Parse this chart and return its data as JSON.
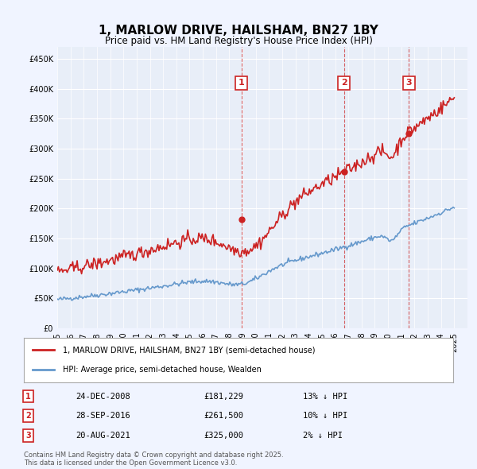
{
  "title": "1, MARLOW DRIVE, HAILSHAM, BN27 1BY",
  "subtitle": "Price paid vs. HM Land Registry's House Price Index (HPI)",
  "ylabel": "",
  "ylim": [
    0,
    470000
  ],
  "yticks": [
    0,
    50000,
    100000,
    150000,
    200000,
    250000,
    300000,
    350000,
    400000,
    450000
  ],
  "ytick_labels": [
    "£0",
    "£50K",
    "£100K",
    "£150K",
    "£200K",
    "£250K",
    "£300K",
    "£350K",
    "£400K",
    "£450K"
  ],
  "background_color": "#f0f4ff",
  "plot_bg_color": "#e8eef8",
  "grid_color": "#ffffff",
  "hpi_color": "#6699cc",
  "price_color": "#cc2222",
  "sale_marker_color": "#cc2222",
  "vline_color": "#cc2222",
  "annotation_box_color": "#cc2222",
  "sales": [
    {
      "date": "2008-12-24",
      "price": 181229,
      "label": "1",
      "note": "13% ↓ HPI",
      "date_str": "24-DEC-2008"
    },
    {
      "date": "2016-09-28",
      "price": 261500,
      "label": "2",
      "note": "10% ↓ HPI",
      "date_str": "28-SEP-2016"
    },
    {
      "date": "2021-08-20",
      "price": 325000,
      "label": "3",
      "note": "2% ↓ HPI",
      "date_str": "20-AUG-2021"
    }
  ],
  "legend_property_label": "1, MARLOW DRIVE, HAILSHAM, BN27 1BY (semi-detached house)",
  "legend_hpi_label": "HPI: Average price, semi-detached house, Wealden",
  "footer_line1": "Contains HM Land Registry data © Crown copyright and database right 2025.",
  "footer_line2": "This data is licensed under the Open Government Licence v3.0."
}
